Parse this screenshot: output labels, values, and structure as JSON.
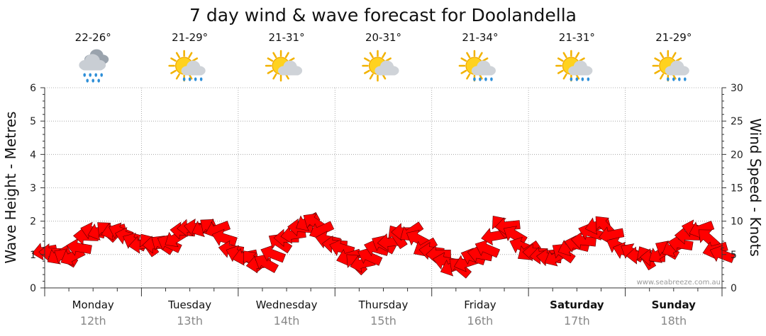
{
  "chart_data": {
    "type": "line",
    "title": "7 day wind & wave forecast for Doolandella",
    "ylabel": "Wave Height - Metres",
    "y2label": "Wind Speed - Knots",
    "ylim": [
      0,
      6
    ],
    "y2lim": [
      0,
      30
    ],
    "yticks": [
      "0",
      "1",
      "2",
      "3",
      "4",
      "5",
      "6"
    ],
    "y2ticks": [
      "0",
      "5",
      "10",
      "15",
      "20",
      "25",
      "30"
    ],
    "grid": true,
    "days": [
      {
        "day": "Monday",
        "date": "12th",
        "temp": "22-26°",
        "icon": "rain-cloud-icon",
        "bold": false
      },
      {
        "day": "Tuesday",
        "date": "13th",
        "temp": "21-29°",
        "icon": "sun-cloud-showers-icon",
        "bold": false
      },
      {
        "day": "Wednesday",
        "date": "14th",
        "temp": "21-31°",
        "icon": "sun-cloud-icon",
        "bold": false
      },
      {
        "day": "Thursday",
        "date": "15th",
        "temp": "20-31°",
        "icon": "sun-cloud-icon",
        "bold": false
      },
      {
        "day": "Friday",
        "date": "16th",
        "temp": "21-34°",
        "icon": "sun-cloud-showers-icon",
        "bold": false
      },
      {
        "day": "Saturday",
        "date": "17th",
        "temp": "21-31°",
        "icon": "sun-cloud-showers-icon",
        "bold": true
      },
      {
        "day": "Sunday",
        "date": "18th",
        "temp": "21-29°",
        "icon": "sun-cloud-showers-icon",
        "bold": true
      }
    ],
    "series": [
      {
        "marker": "wind-direction-arrow",
        "color": "#ff0000",
        "x_days": [
          0.0,
          0.25,
          0.5,
          0.75,
          1.0,
          1.25,
          1.5,
          1.75,
          2.0,
          2.25,
          2.5,
          2.75,
          3.0,
          3.25,
          3.5,
          3.75,
          4.0,
          4.25,
          4.5,
          4.75,
          5.0,
          5.25,
          5.5,
          5.75,
          6.0,
          6.25,
          6.5,
          6.75,
          7.0
        ],
        "values": [
          5.5,
          4.5,
          8.5,
          8.5,
          6.5,
          6.5,
          9.0,
          9.0,
          5.0,
          3.5,
          7.5,
          10.0,
          6.5,
          3.5,
          6.5,
          8.5,
          5.5,
          3.0,
          5.0,
          9.5,
          5.5,
          4.5,
          6.5,
          9.5,
          5.5,
          4.5,
          6.0,
          9.0,
          5.0
        ]
      }
    ]
  },
  "watermark": "www.seabreeze.com.au"
}
